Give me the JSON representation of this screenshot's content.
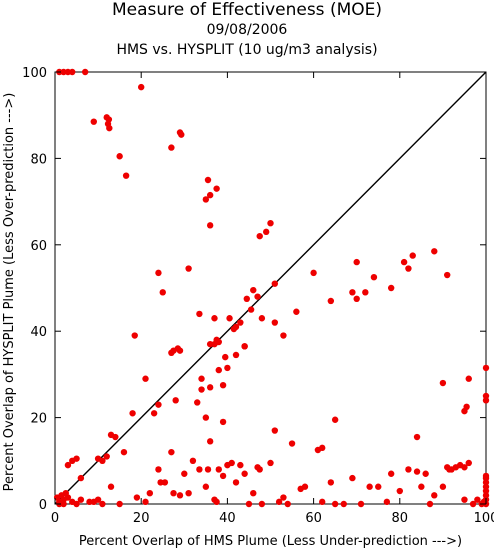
{
  "chart_data": {
    "type": "scatter",
    "title": "Measure of Effectiveness (MOE)",
    "subtitle_date": "09/08/2006",
    "subtitle": "HMS vs. HYSPLIT  (10 ug/m3 analysis)",
    "xlabel": "Percent Overlap of HMS Plume (Less Under-prediction --->)",
    "ylabel": "Percent Overlap of HYSPLIT Plume (Less Over-prediction --->)",
    "xlim": [
      0,
      100
    ],
    "ylim": [
      0,
      100
    ],
    "xticks": [
      "0",
      "20",
      "40",
      "60",
      "80",
      "100"
    ],
    "yticks": [
      "0",
      "20",
      "40",
      "60",
      "80",
      "100"
    ],
    "grid": false,
    "reference_line": "y = x",
    "point_color": "#ee0000",
    "line_color": "#000000",
    "points": [
      [
        1,
        100
      ],
      [
        2,
        100
      ],
      [
        3,
        100
      ],
      [
        4,
        100
      ],
      [
        7,
        100
      ],
      [
        12,
        89.5
      ],
      [
        12.5,
        89
      ],
      [
        12.3,
        88
      ],
      [
        12.6,
        87
      ],
      [
        9,
        88.5
      ],
      [
        20,
        96.5
      ],
      [
        15,
        80.5
      ],
      [
        16.5,
        76
      ],
      [
        27,
        82.5
      ],
      [
        29,
        86
      ],
      [
        29.3,
        85.5
      ],
      [
        35.5,
        75
      ],
      [
        36,
        71.5
      ],
      [
        37.5,
        73
      ],
      [
        35,
        70.5
      ],
      [
        36,
        64.5
      ],
      [
        24,
        53.5
      ],
      [
        25,
        49
      ],
      [
        31,
        54.5
      ],
      [
        18.5,
        39
      ],
      [
        27,
        35
      ],
      [
        27.5,
        35.5
      ],
      [
        28.5,
        36
      ],
      [
        29,
        35.5
      ],
      [
        33.5,
        44
      ],
      [
        37,
        43
      ],
      [
        37.5,
        38
      ],
      [
        36,
        37
      ],
      [
        38,
        37.5
      ],
      [
        37,
        37
      ],
      [
        40.5,
        43
      ],
      [
        41.5,
        40.5
      ],
      [
        42,
        41
      ],
      [
        43,
        42
      ],
      [
        44.5,
        47.5
      ],
      [
        45.5,
        45
      ],
      [
        47,
        48
      ],
      [
        46,
        49.5
      ],
      [
        47.5,
        62
      ],
      [
        49,
        63
      ],
      [
        50,
        65
      ],
      [
        51,
        51
      ],
      [
        53,
        39
      ],
      [
        56,
        44.5
      ],
      [
        64,
        47
      ],
      [
        60,
        53.5
      ],
      [
        70,
        56
      ],
      [
        72,
        49
      ],
      [
        74,
        52.5
      ],
      [
        78,
        50
      ],
      [
        81,
        56
      ],
      [
        82,
        54.5
      ],
      [
        83,
        57.5
      ],
      [
        88,
        58.5
      ],
      [
        91,
        53
      ],
      [
        69,
        49
      ],
      [
        70,
        47.5
      ],
      [
        44,
        36.5
      ],
      [
        48,
        43
      ],
      [
        51,
        42
      ],
      [
        21,
        29
      ],
      [
        23,
        21
      ],
      [
        24,
        23
      ],
      [
        28,
        24
      ],
      [
        34,
        29
      ],
      [
        34,
        26.5
      ],
      [
        33,
        23.5
      ],
      [
        36,
        27
      ],
      [
        39,
        27.5
      ],
      [
        40,
        31.5
      ],
      [
        38,
        31
      ],
      [
        35,
        20
      ],
      [
        39.5,
        34
      ],
      [
        42,
        34.5
      ],
      [
        44,
        36.5
      ],
      [
        18,
        21
      ],
      [
        13,
        16
      ],
      [
        16,
        12
      ],
      [
        14,
        15.5
      ],
      [
        10,
        10.5
      ],
      [
        11,
        10
      ],
      [
        12,
        11
      ],
      [
        36,
        14.5
      ],
      [
        39,
        19
      ],
      [
        47,
        8.5
      ],
      [
        47.5,
        8
      ],
      [
        50,
        9.5
      ],
      [
        51,
        17
      ],
      [
        55,
        14
      ],
      [
        61,
        12.5
      ],
      [
        62,
        13
      ],
      [
        65,
        19.5
      ],
      [
        84,
        15.5
      ],
      [
        90,
        28
      ],
      [
        95,
        21.5
      ],
      [
        95.5,
        22.5
      ],
      [
        96,
        29
      ],
      [
        100,
        31.5
      ],
      [
        100,
        25
      ],
      [
        100,
        24
      ],
      [
        2,
        1
      ],
      [
        2.5,
        2.5
      ],
      [
        3,
        9
      ],
      [
        4,
        10
      ],
      [
        5,
        10.5
      ],
      [
        6,
        6
      ],
      [
        1.5,
        2
      ],
      [
        1,
        0.5
      ],
      [
        0.5,
        1.5
      ],
      [
        1,
        0
      ],
      [
        2,
        0
      ],
      [
        3,
        1.5
      ],
      [
        4,
        0.5
      ],
      [
        5,
        0
      ],
      [
        6,
        1
      ],
      [
        8,
        0.5
      ],
      [
        9,
        0.5
      ],
      [
        10,
        1
      ],
      [
        11,
        0
      ],
      [
        13,
        4
      ],
      [
        15,
        0
      ],
      [
        19,
        1.5
      ],
      [
        21,
        0.5
      ],
      [
        22,
        2.5
      ],
      [
        24,
        8
      ],
      [
        24.5,
        5
      ],
      [
        25.5,
        5
      ],
      [
        27,
        12
      ],
      [
        27.5,
        2.5
      ],
      [
        29,
        2
      ],
      [
        30,
        7
      ],
      [
        31,
        2.5
      ],
      [
        32,
        10
      ],
      [
        33.5,
        8
      ],
      [
        35,
        4
      ],
      [
        35.5,
        8
      ],
      [
        37,
        1
      ],
      [
        37.5,
        0.5
      ],
      [
        38,
        8
      ],
      [
        39,
        6.5
      ],
      [
        40,
        9
      ],
      [
        41,
        9.5
      ],
      [
        42,
        5
      ],
      [
        43,
        9
      ],
      [
        44,
        7
      ],
      [
        45,
        0
      ],
      [
        46,
        2.5
      ],
      [
        48,
        0
      ],
      [
        52,
        0.5
      ],
      [
        53,
        1.5
      ],
      [
        54,
        0
      ],
      [
        57,
        3.5
      ],
      [
        58,
        4
      ],
      [
        62,
        0.5
      ],
      [
        64,
        5
      ],
      [
        65,
        0
      ],
      [
        67,
        0
      ],
      [
        69,
        6
      ],
      [
        71,
        0
      ],
      [
        73,
        4
      ],
      [
        75,
        4
      ],
      [
        77,
        0.5
      ],
      [
        78,
        7
      ],
      [
        80,
        3
      ],
      [
        82,
        8
      ],
      [
        84,
        7.5
      ],
      [
        85,
        4
      ],
      [
        86,
        7
      ],
      [
        87,
        0
      ],
      [
        88,
        2
      ],
      [
        90,
        4
      ],
      [
        91,
        8.5
      ],
      [
        91.5,
        8
      ],
      [
        92,
        8
      ],
      [
        93,
        8.5
      ],
      [
        94,
        9
      ],
      [
        95,
        8.5
      ],
      [
        96,
        9.5
      ],
      [
        97,
        0
      ],
      [
        98,
        1
      ],
      [
        99,
        0
      ],
      [
        99.5,
        0.5
      ],
      [
        100,
        1
      ],
      [
        100,
        2
      ],
      [
        100,
        3
      ],
      [
        100,
        4
      ],
      [
        100,
        5
      ],
      [
        100,
        6
      ],
      [
        100,
        6.5
      ],
      [
        100,
        0
      ],
      [
        95,
        1
      ]
    ]
  }
}
